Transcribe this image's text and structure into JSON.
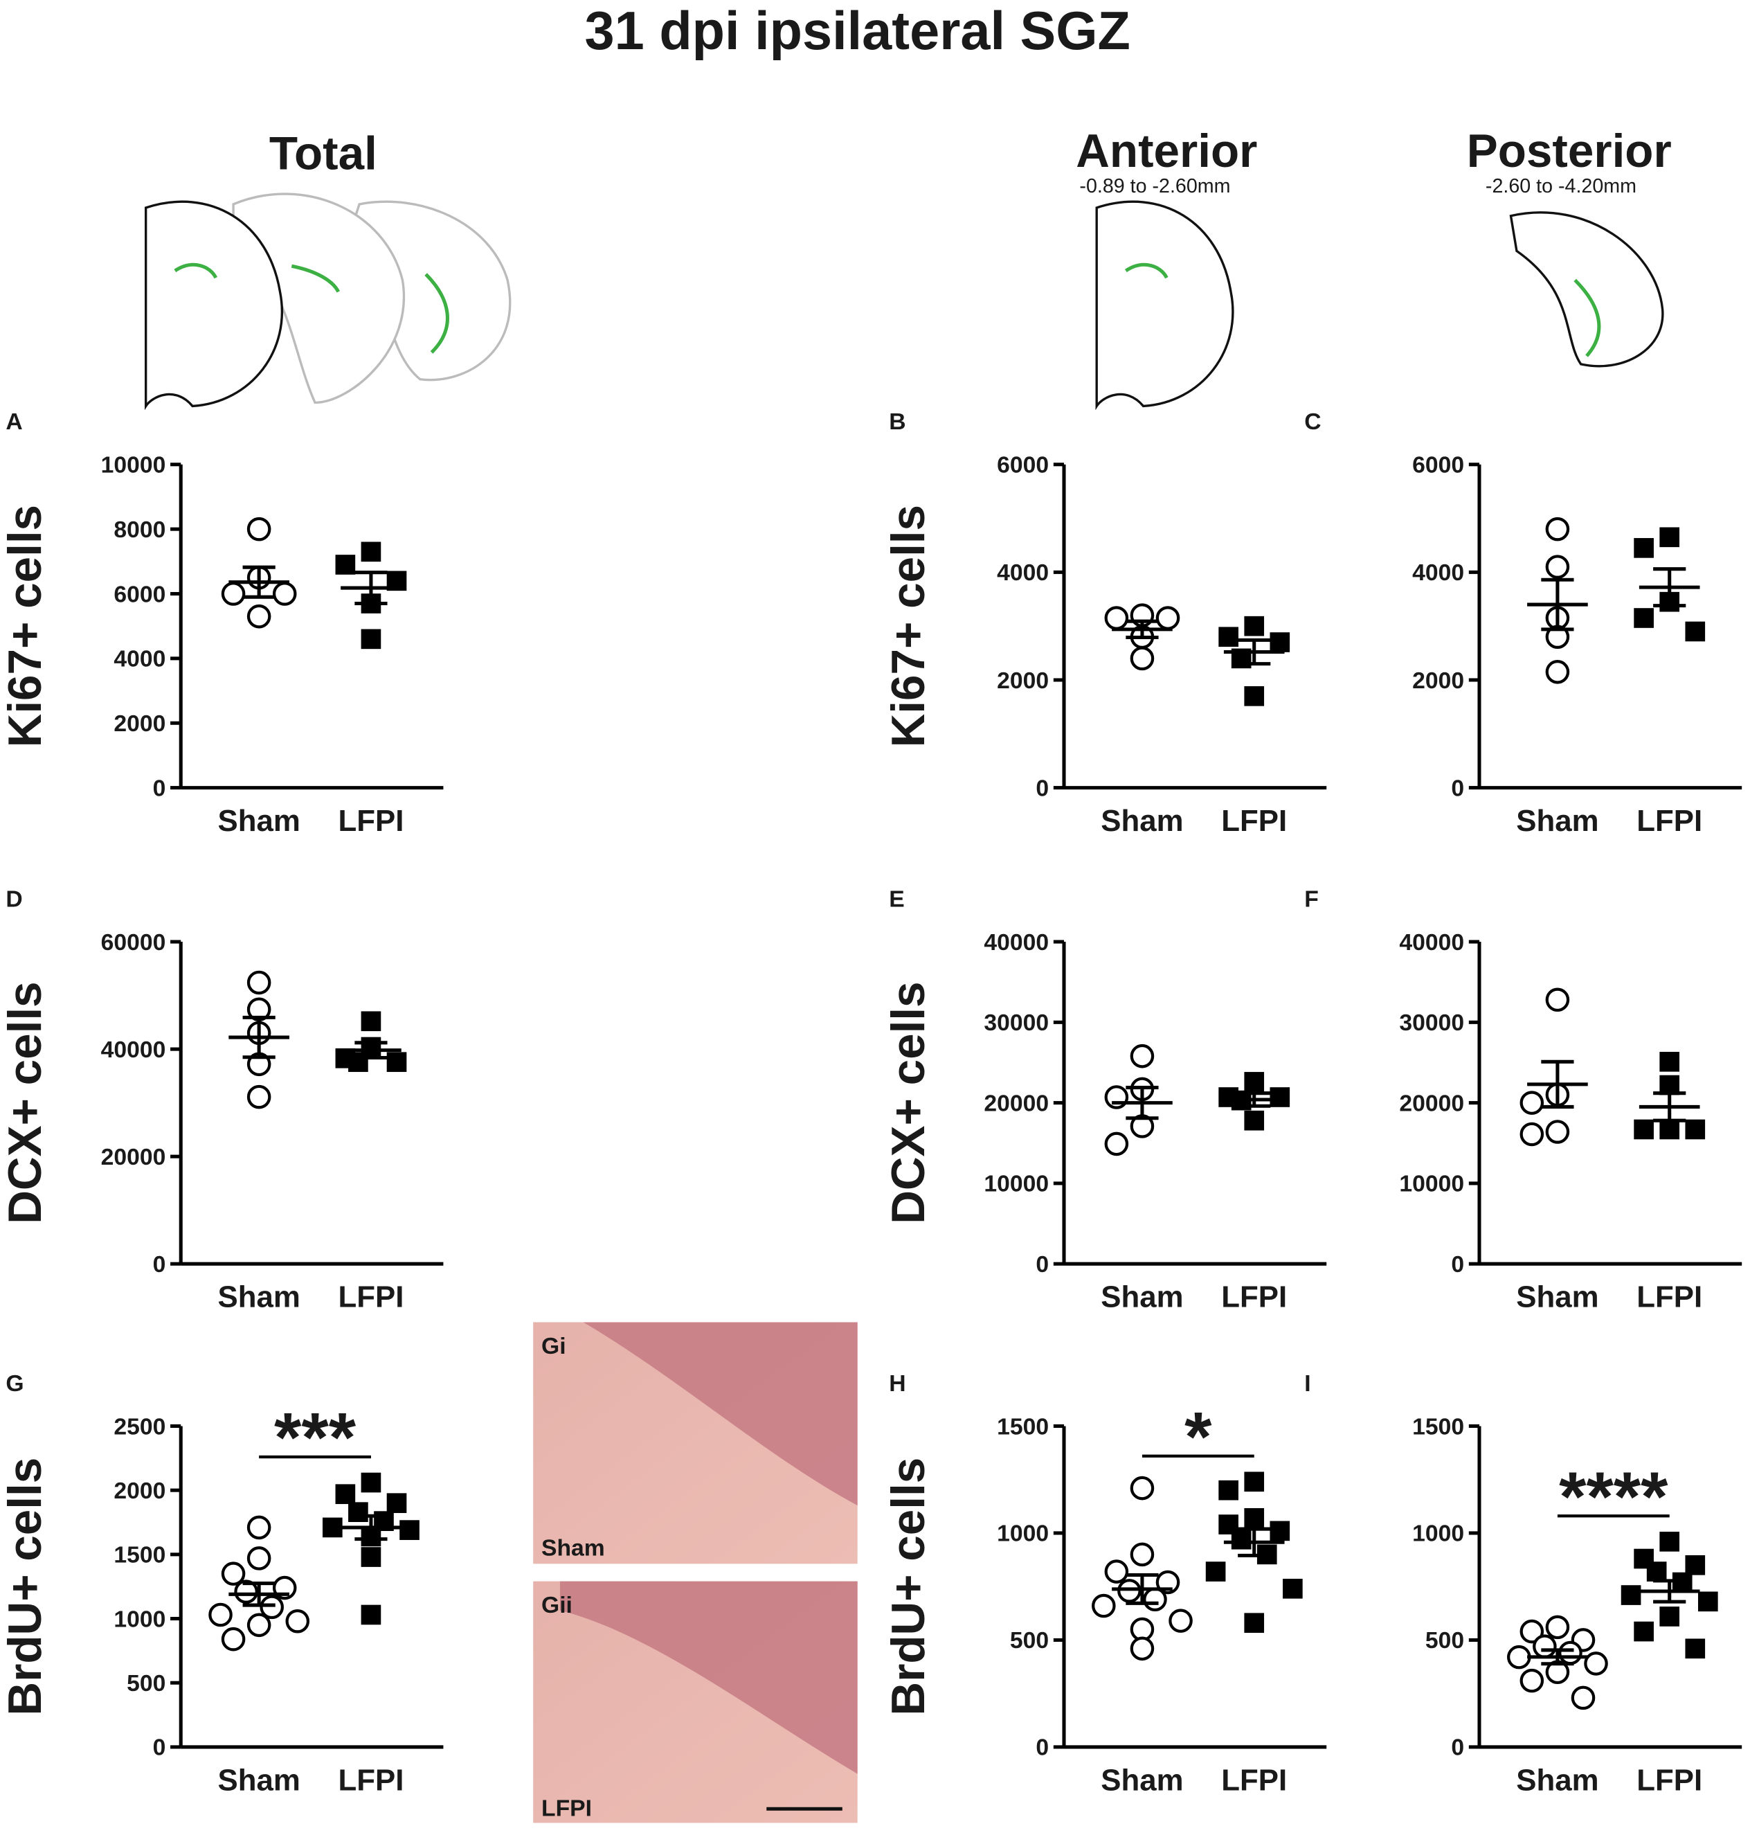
{
  "header": {
    "title": "31 dpi ipsilateral SGZ",
    "columns": [
      {
        "title": "Total"
      },
      {
        "title": "Anterior",
        "range": "-0.89 to -2.60mm"
      },
      {
        "title": "Posterior",
        "range": "-2.60 to -4.20mm"
      }
    ]
  },
  "chart_data": [
    {
      "type": "dot",
      "panel": "A",
      "ylabel": "Ki67+ cells",
      "categories": [
        "Sham",
        "LFPI"
      ],
      "color": "#000000",
      "groups": [
        {
          "marker": "open-circle",
          "values": [
            8000,
            6500,
            6000,
            6000,
            5300
          ],
          "mean": 6360,
          "sem": 460
        },
        {
          "marker": "filled-square",
          "values": [
            7300,
            6900,
            6400,
            5700,
            4600
          ],
          "mean": 6180,
          "sem": 480
        }
      ],
      "ylim": [
        0,
        10000
      ],
      "yticks": [
        0,
        2000,
        4000,
        6000,
        8000,
        10000
      ]
    },
    {
      "type": "dot",
      "panel": "B",
      "ylabel": "Ki67+ cells",
      "categories": [
        "Sham",
        "LFPI"
      ],
      "color": "#000000",
      "groups": [
        {
          "marker": "open-circle",
          "values": [
            3200,
            3150,
            3150,
            2800,
            2400
          ],
          "mean": 2940,
          "sem": 150
        },
        {
          "marker": "filled-square",
          "values": [
            3000,
            2800,
            2700,
            2400,
            1700
          ],
          "mean": 2520,
          "sem": 220
        }
      ],
      "ylim": [
        0,
        6000
      ],
      "yticks": [
        0,
        2000,
        4000,
        6000
      ]
    },
    {
      "type": "dot",
      "panel": "C",
      "categories": [
        "Sham",
        "LFPI"
      ],
      "color": "#000000",
      "groups": [
        {
          "marker": "open-circle",
          "values": [
            4800,
            4100,
            3150,
            2800,
            2150
          ],
          "mean": 3400,
          "sem": 460
        },
        {
          "marker": "filled-square",
          "values": [
            4650,
            4450,
            3450,
            3150,
            2900
          ],
          "mean": 3720,
          "sem": 340
        }
      ],
      "ylim": [
        0,
        6000
      ],
      "yticks": [
        0,
        2000,
        4000,
        6000
      ]
    },
    {
      "type": "dot",
      "panel": "D",
      "ylabel": "DCX+ cells",
      "categories": [
        "Sham",
        "LFPI"
      ],
      "color": "#000000",
      "groups": [
        {
          "marker": "open-circle",
          "values": [
            52400,
            47400,
            43000,
            37200,
            31100
          ],
          "mean": 42200,
          "sem": 3700
        },
        {
          "marker": "filled-square",
          "values": [
            45200,
            40400,
            38300,
            37600,
            37600
          ],
          "mean": 39800,
          "sem": 1400
        }
      ],
      "ylim": [
        0,
        60000
      ],
      "yticks": [
        0,
        20000,
        40000,
        60000
      ]
    },
    {
      "type": "dot",
      "panel": "E",
      "ylabel": "DCX+ cells",
      "categories": [
        "Sham",
        "LFPI"
      ],
      "color": "#000000",
      "groups": [
        {
          "marker": "open-circle",
          "values": [
            25800,
            21700,
            20700,
            17100,
            14900
          ],
          "mean": 20000,
          "sem": 1900
        },
        {
          "marker": "filled-square",
          "values": [
            22600,
            20700,
            20700,
            20300,
            17800
          ],
          "mean": 20400,
          "sem": 800
        }
      ],
      "ylim": [
        0,
        40000
      ],
      "yticks": [
        0,
        10000,
        20000,
        30000,
        40000
      ]
    },
    {
      "type": "dot",
      "panel": "F",
      "categories": [
        "Sham",
        "LFPI"
      ],
      "color": "#000000",
      "groups": [
        {
          "marker": "open-circle",
          "values": [
            32800,
            21000,
            20000,
            16400,
            16100
          ],
          "mean": 22300,
          "sem": 2800
        },
        {
          "marker": "filled-square",
          "values": [
            25100,
            22200,
            16700,
            16700,
            16700
          ],
          "mean": 19500,
          "sem": 1700
        }
      ],
      "ylim": [
        0,
        40000
      ],
      "yticks": [
        0,
        10000,
        20000,
        30000,
        40000
      ]
    },
    {
      "type": "dot",
      "panel": "G",
      "ylabel": "BrdU+ cells",
      "categories": [
        "Sham",
        "LFPI"
      ],
      "color": "#000000",
      "annotation": "***",
      "groups": [
        {
          "marker": "open-circle",
          "values": [
            1710,
            1470,
            1350,
            1240,
            1210,
            1090,
            1030,
            980,
            950,
            840
          ],
          "mean": 1190,
          "sem": 85
        },
        {
          "marker": "filled-square",
          "values": [
            2060,
            1970,
            1900,
            1830,
            1760,
            1710,
            1690,
            1640,
            1480,
            1030
          ],
          "mean": 1710,
          "sem": 90
        }
      ],
      "ylim": [
        0,
        2500
      ],
      "yticks": [
        0,
        500,
        1000,
        1500,
        2000,
        2500
      ]
    },
    {
      "type": "dot",
      "panel": "H",
      "ylabel": "BrdU+ cells",
      "categories": [
        "Sham",
        "LFPI"
      ],
      "color": "#000000",
      "annotation": "*",
      "groups": [
        {
          "marker": "open-circle",
          "values": [
            1210,
            900,
            820,
            770,
            730,
            690,
            660,
            590,
            550,
            460
          ],
          "mean": 738,
          "sem": 66
        },
        {
          "marker": "filled-square",
          "values": [
            1240,
            1200,
            1070,
            1040,
            1010,
            970,
            900,
            820,
            740,
            580
          ],
          "mean": 957,
          "sem": 62
        }
      ],
      "ylim": [
        0,
        1500
      ],
      "yticks": [
        0,
        500,
        1000,
        1500
      ]
    },
    {
      "type": "dot",
      "panel": "I",
      "categories": [
        "Sham",
        "LFPI"
      ],
      "color": "#000000",
      "annotation": "****",
      "groups": [
        {
          "marker": "open-circle",
          "values": [
            560,
            540,
            500,
            470,
            440,
            420,
            390,
            350,
            310,
            230
          ],
          "mean": 421,
          "sem": 32
        },
        {
          "marker": "filled-square",
          "values": [
            960,
            880,
            850,
            820,
            770,
            710,
            680,
            610,
            540,
            460
          ],
          "mean": 728,
          "sem": 49
        }
      ],
      "ylim": [
        0,
        1500
      ],
      "yticks": [
        0,
        500,
        1000,
        1500
      ]
    }
  ],
  "micrographs": [
    {
      "label": "Gi",
      "group": "Sham"
    },
    {
      "label": "Gii",
      "group": "LFPI"
    }
  ]
}
